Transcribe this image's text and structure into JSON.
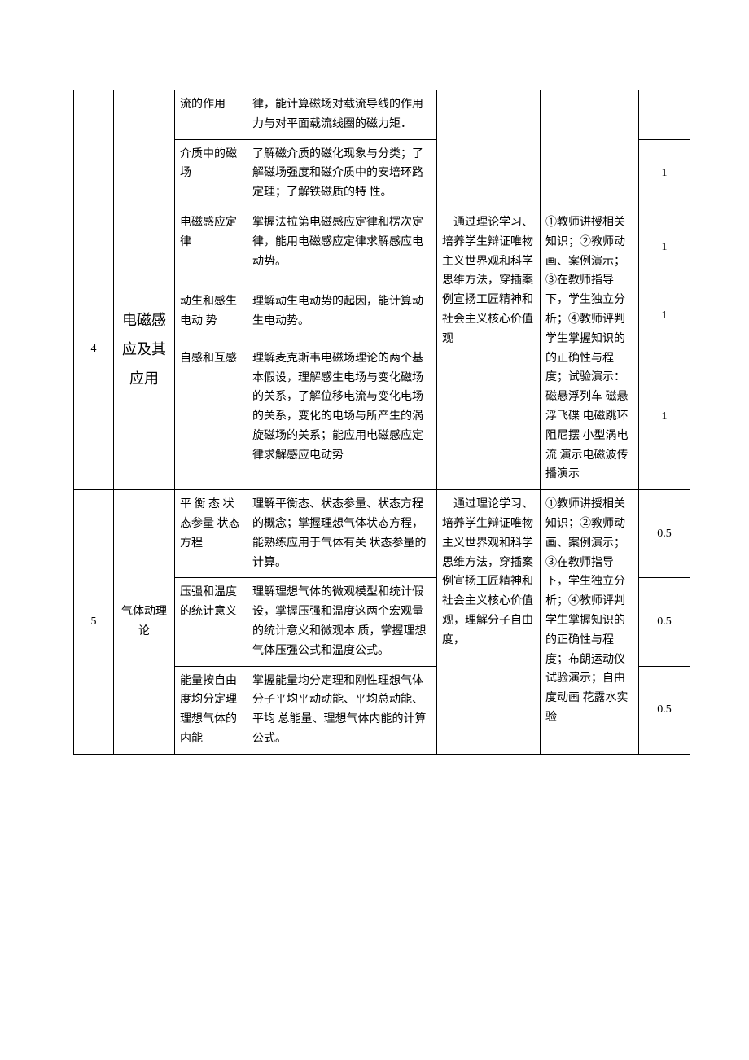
{
  "rows": [
    {
      "c3": "流的作用",
      "c4": "律，能计算磁场对载流导线的作用力与对平面载流线圈的磁力矩．",
      "c7": ""
    },
    {
      "c3": "介质中的磁场",
      "c4": "了解磁介质的磁化现象与分类；了解磁场强度和磁介质中的安培环路定理；了解铁磁质的特 性。",
      "c7": "1"
    },
    {
      "c1": "4",
      "c2": "电磁感应及其应用",
      "c3": "电磁感应定律",
      "c4": "掌握法拉第电磁感应定律和楞次定律，能用电磁感应定律求解感应电动势。",
      "c5": "通过理论学习、培养学生辩证唯物主义世界观和科学思维方法，穿插案例宣扬工匠精神和社会主义核心价值观",
      "c6": "①教师讲授相关知识；②教师动画、案例演示；③在教师指导下，学生独立分析；④教师评判学生掌握知识的的正确性与程度；试验演示：磁悬浮列车 磁悬浮飞碟 电磁跳环 阻尼摆 小型涡电流 演示电磁波传播演示",
      "c7": "1"
    },
    {
      "c3": "动生和感生电动 势",
      "c4": "理解动生电动势的起因，能计算动生电动势。",
      "c7": "1"
    },
    {
      "c3": "自感和互感",
      "c4": "理解麦克斯韦电磁场理论的两个基本假设，理解感生电场与变化磁场的关系，了解位移电流与变化电场的关系，变化的电场与所产生的涡旋磁场的关系；能应用电磁感应定律求解感应电动势",
      "c7": "1"
    },
    {
      "c1": "5",
      "c2": "气体动理论",
      "c3": "平 衡 态 状态参量 状态方程",
      "c4": "理解平衡态、状态参量、状态方程的概念；掌握理想气体状态方程，能熟练应用于气体有关 状态参量的计算。",
      "c5": "通过理论学习、培养学生辩证唯物主义世界观和科学思维方法，穿插案例宣扬工匠精神和社会主义核心价值观，理解分子自由度，",
      "c6": "①教师讲授相关知识；②教师动画、案例演示；③在教师指导下，学生独立分析；④教师评判学生掌握知识的的正确性与程度；布朗运动仪试验演示；自由度动画 花露水实验",
      "c7": "0.5"
    },
    {
      "c3": "压强和温度的统计意义",
      "c4": "理解理想气体的微观模型和统计假设，掌握压强和温度这两个宏观量的统计意义和微观本 质，掌握理想气体压强公式和温度公式。",
      "c7": "0.5"
    },
    {
      "c3": "能量按自由度均分定理 理想气体的内能",
      "c4": "掌握能量均分定理和刚性理想气体分子平均平动动能、平均总动能、平均 总能量、理想气体内能的计算公式。",
      "c7": "0.5"
    }
  ]
}
